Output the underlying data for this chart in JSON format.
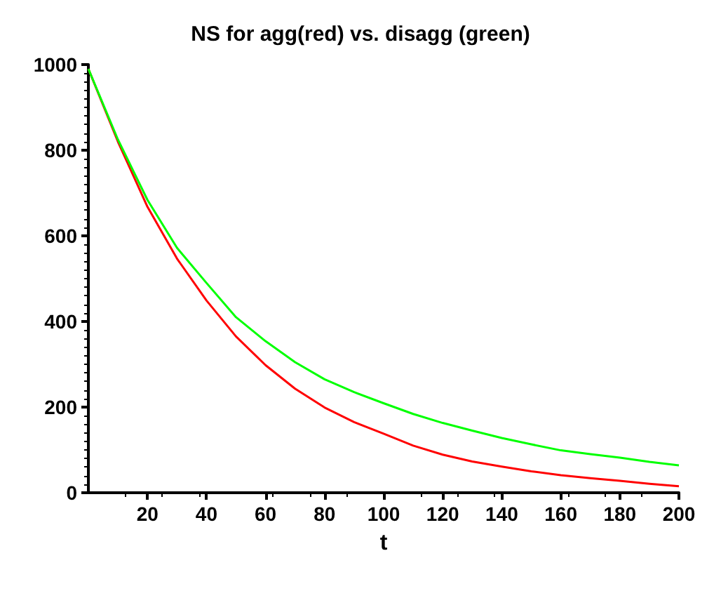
{
  "chart_data": {
    "type": "line",
    "title": "NS for agg(red) vs. disagg (green)",
    "xlabel": "t",
    "x": [
      0,
      10,
      20,
      30,
      40,
      50,
      60,
      70,
      80,
      90,
      100,
      110,
      120,
      130,
      140,
      150,
      160,
      170,
      180,
      190,
      200
    ],
    "series": [
      {
        "color": "#ff0000",
        "values": [
          990,
          820,
          668,
          547,
          449,
          365,
          298,
          243,
          199,
          165,
          138,
          110,
          89,
          73,
          61,
          50,
          41,
          34,
          28,
          21,
          15
        ]
      },
      {
        "color": "#00ff00",
        "values": [
          990,
          825,
          684,
          572,
          490,
          410,
          354,
          305,
          265,
          235,
          209,
          184,
          163,
          145,
          128,
          113,
          99,
          90,
          82,
          72,
          64
        ]
      }
    ],
    "xlim": [
      0,
      200
    ],
    "xticks": [
      20,
      40,
      60,
      80,
      100,
      120,
      140,
      160,
      180,
      200
    ],
    "ylim": [
      0,
      1000
    ],
    "yticks": [
      0,
      200,
      400,
      600,
      800,
      1000
    ],
    "grid": false,
    "marker": "none",
    "line_style": "solid"
  }
}
